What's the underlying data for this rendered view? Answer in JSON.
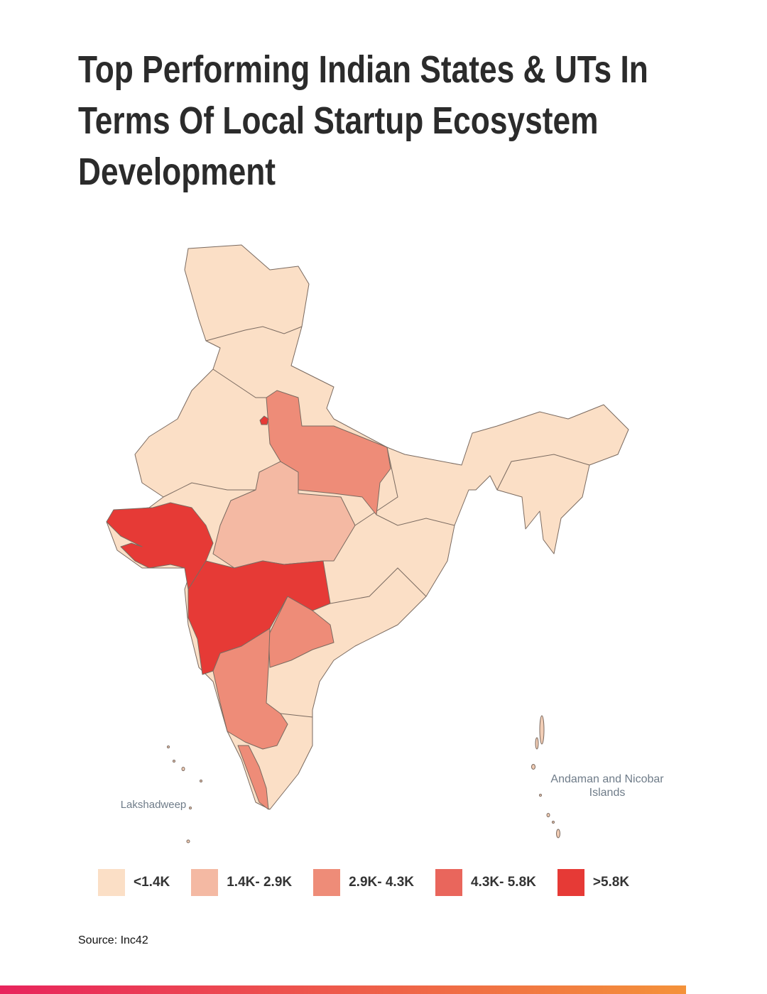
{
  "header": {
    "title": "Top Performing Indian States & UTs In Terms Of Local Startup Ecosystem Development"
  },
  "map": {
    "labels": [
      "Lakshadweep",
      "Andaman and Nicobar Islands"
    ]
  },
  "legend": {
    "items": [
      {
        "label": "<1.4K",
        "color": "#fbdfc6"
      },
      {
        "label": "1.4K- 2.9K",
        "color": "#f4b9a3"
      },
      {
        "label": "2.9K- 4.3K",
        "color": "#ee8c78"
      },
      {
        "label": "4.3K- 5.8K",
        "color": "#e9665c"
      },
      {
        "label": ">5.8K",
        "color": "#e63a36"
      }
    ]
  },
  "footer": {
    "source": "Source: Inc42"
  }
}
